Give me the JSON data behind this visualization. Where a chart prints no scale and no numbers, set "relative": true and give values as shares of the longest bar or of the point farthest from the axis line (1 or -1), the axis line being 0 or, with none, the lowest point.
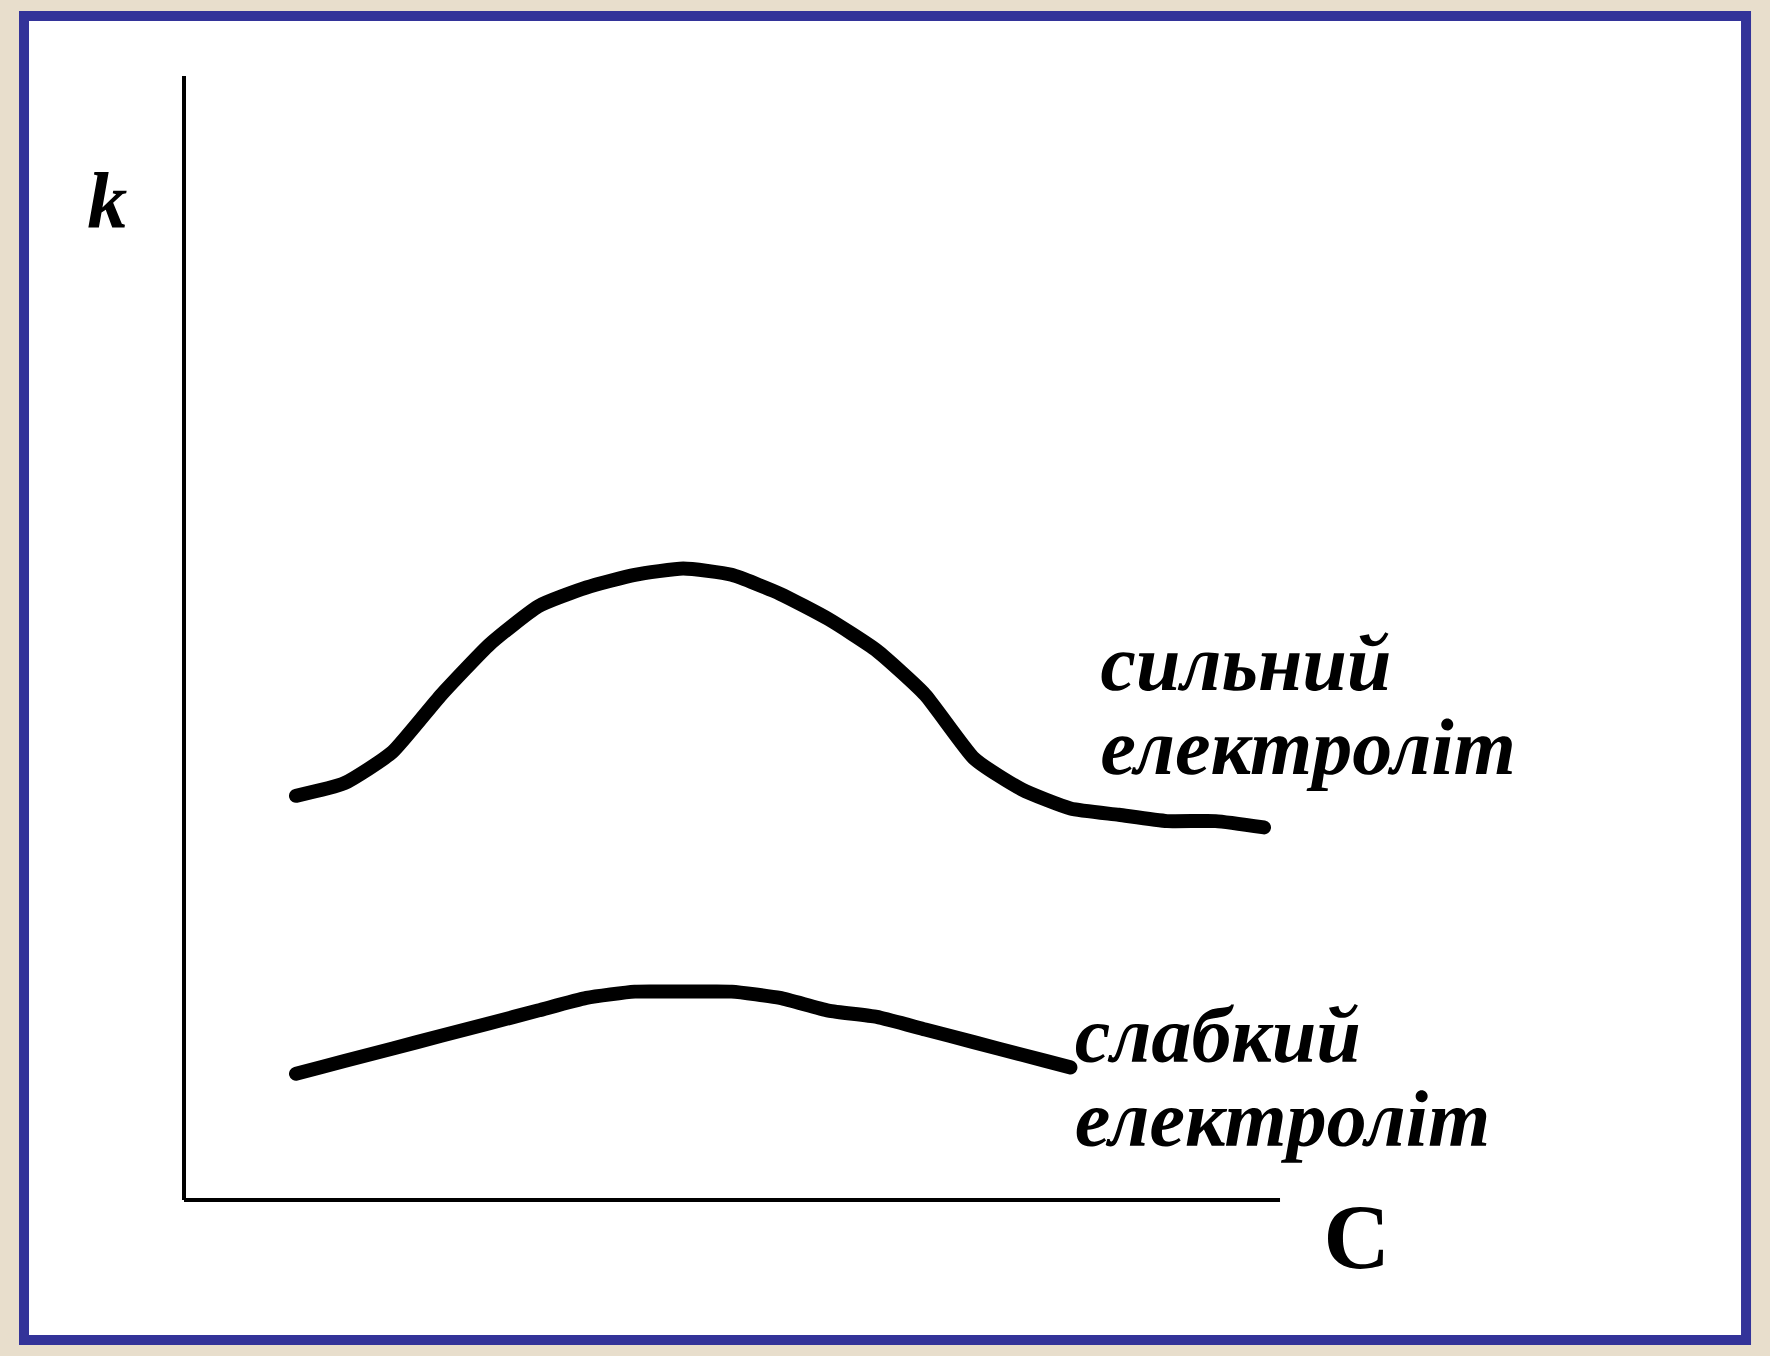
{
  "chart_data": {
    "type": "line",
    "relative": true,
    "xlabel": "C",
    "ylabel": "k",
    "categories": [
      null,
      null,
      null,
      null,
      null,
      null,
      null,
      null,
      null,
      null,
      null,
      null,
      null,
      null,
      null,
      null,
      null,
      null,
      null,
      null,
      null
    ],
    "series": [
      {
        "name": "сильний електроліт",
        "color": "#000000",
        "values": [
          0.64,
          0.66,
          0.71,
          0.8,
          0.88,
          0.94,
          0.97,
          0.99,
          1.0,
          0.99,
          0.96,
          0.92,
          0.87,
          0.8,
          0.7,
          0.65,
          0.62,
          0.61,
          0.6,
          0.6,
          0.59
        ]
      },
      {
        "name": "слабкий електроліт",
        "color": "#000000",
        "values": [
          0.2,
          0.22,
          0.24,
          0.26,
          0.28,
          0.3,
          0.32,
          0.33,
          0.33,
          0.33,
          0.32,
          0.3,
          0.29,
          0.27,
          0.25,
          0.23,
          0.21,
          null,
          null,
          null,
          null
        ]
      }
    ]
  }
}
